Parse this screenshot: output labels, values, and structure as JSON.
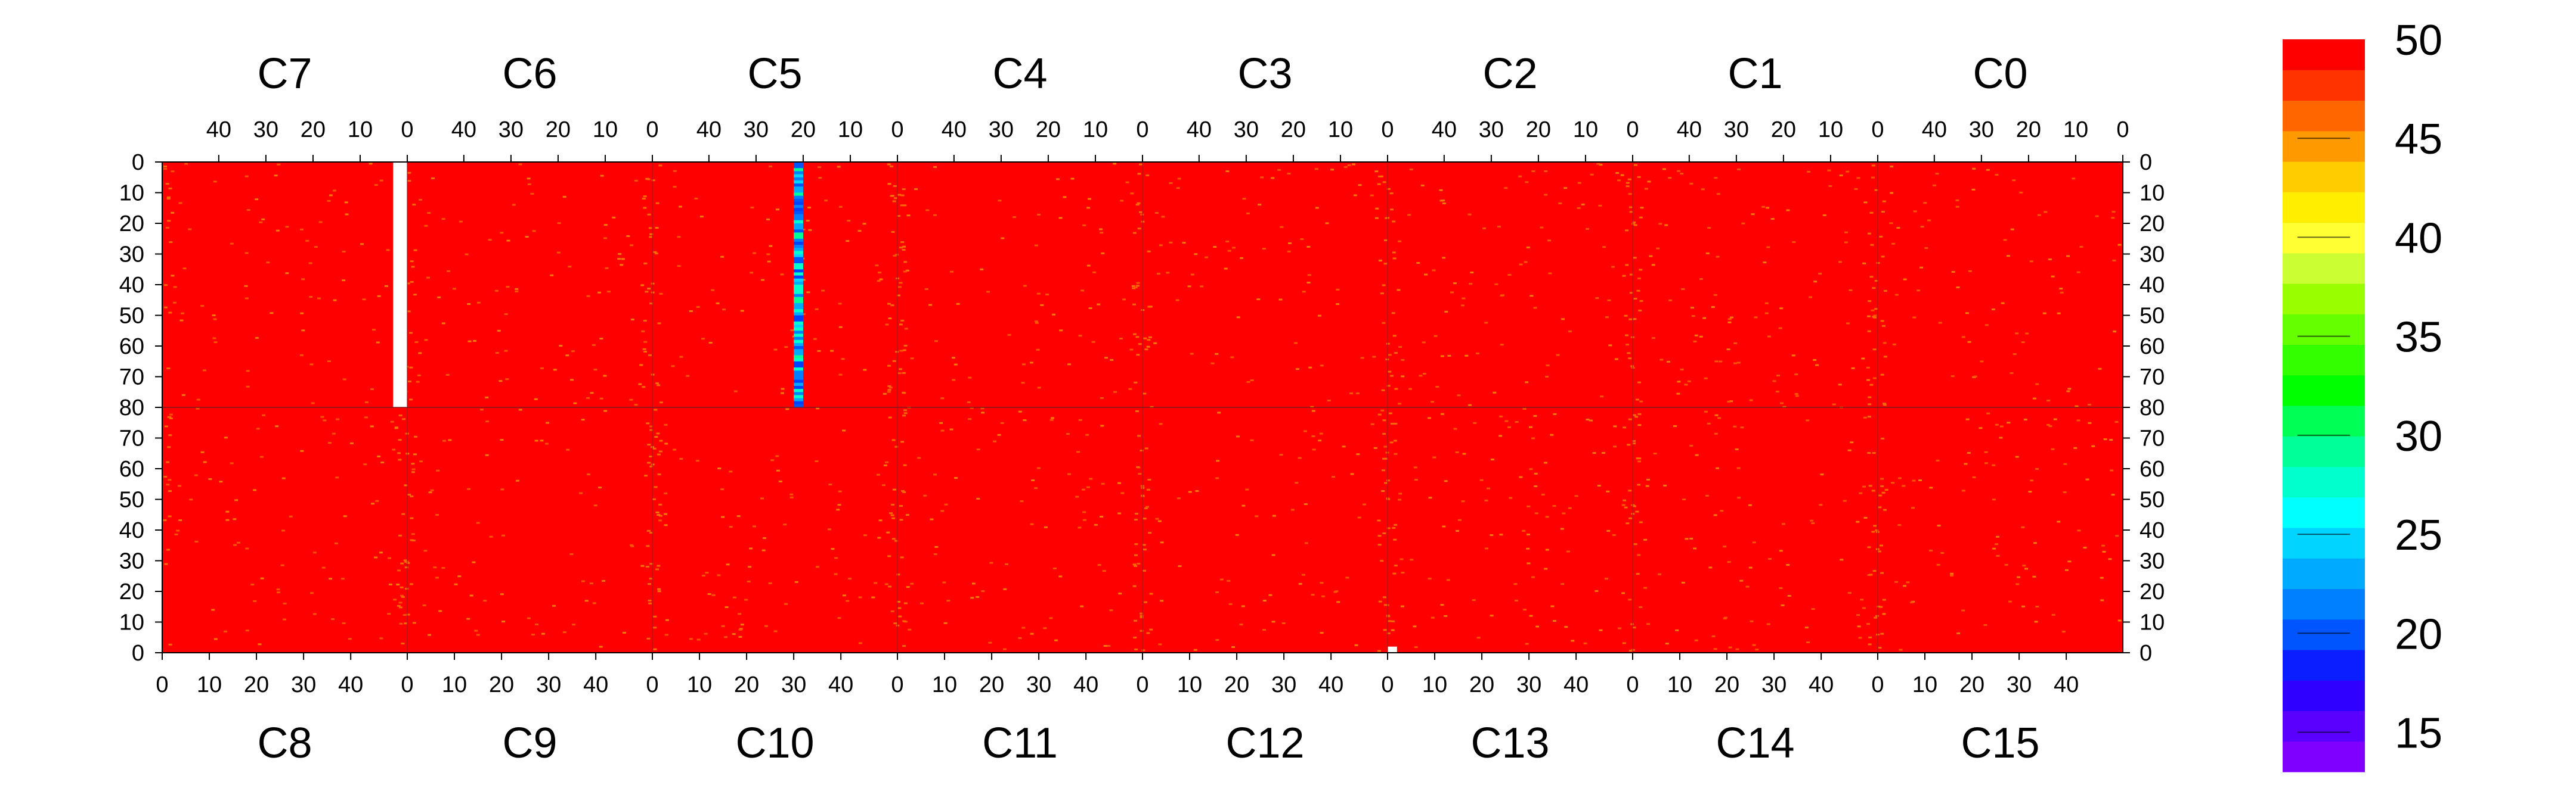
{
  "chart_data": {
    "type": "heatmap",
    "title": "",
    "colorbar": {
      "min": 13,
      "max": 50,
      "tick_labels": [
        "50",
        "45",
        "40",
        "35",
        "30",
        "25",
        "20",
        "15"
      ],
      "tick_values": [
        50,
        45,
        40,
        35,
        30,
        25,
        20,
        15
      ],
      "colors": [
        "#7f00ff",
        "#5a00ff",
        "#2f00ff",
        "#0a1eff",
        "#0055ff",
        "#007fff",
        "#00aaff",
        "#00d4ff",
        "#00ffff",
        "#00ffcc",
        "#00ff99",
        "#00ff55",
        "#00ff00",
        "#33ff00",
        "#66ff00",
        "#99ff00",
        "#ccff33",
        "#ffff33",
        "#ffee00",
        "#ffcc00",
        "#ff9900",
        "#ff6600",
        "#ff3300",
        "#ff0000"
      ]
    },
    "top_chip_labels": [
      "C7",
      "C6",
      "C5",
      "C4",
      "C3",
      "C2",
      "C1",
      "C0"
    ],
    "bottom_chip_labels": [
      "C8",
      "C9",
      "C10",
      "C11",
      "C12",
      "C13",
      "C14",
      "C15"
    ],
    "top_x_ticks": [
      "40",
      "30",
      "20",
      "10",
      "0"
    ],
    "top_x_tick_values": [
      40,
      30,
      20,
      10,
      0
    ],
    "bottom_x_ticks": [
      "0",
      "10",
      "20",
      "30",
      "40"
    ],
    "bottom_x_tick_values": [
      0,
      10,
      20,
      30,
      40
    ],
    "upper_y_ticks": [
      "0",
      "10",
      "20",
      "30",
      "40",
      "50",
      "60",
      "70",
      "80"
    ],
    "upper_y_tick_values": [
      0,
      10,
      20,
      30,
      40,
      50,
      60,
      70,
      80
    ],
    "lower_y_ticks": [
      "80",
      "70",
      "60",
      "50",
      "40",
      "30",
      "20",
      "10",
      "0"
    ],
    "lower_y_tick_values": [
      80,
      70,
      60,
      50,
      40,
      30,
      20,
      10,
      0
    ],
    "columns_per_chip": 52,
    "rows_per_chip": 80,
    "background_value": 50,
    "features": [
      {
        "chip": "C7",
        "col_range": [
          0,
          2
        ],
        "row_range": [
          0,
          80
        ],
        "value": null
      },
      {
        "chip": "C5",
        "col_range": [
          20,
          21
        ],
        "row_range": [
          0,
          80
        ],
        "value": 22
      },
      {
        "chip": "C13",
        "col_range": [
          0,
          1
        ],
        "row_range": [
          0,
          2
        ],
        "value": null
      }
    ]
  }
}
